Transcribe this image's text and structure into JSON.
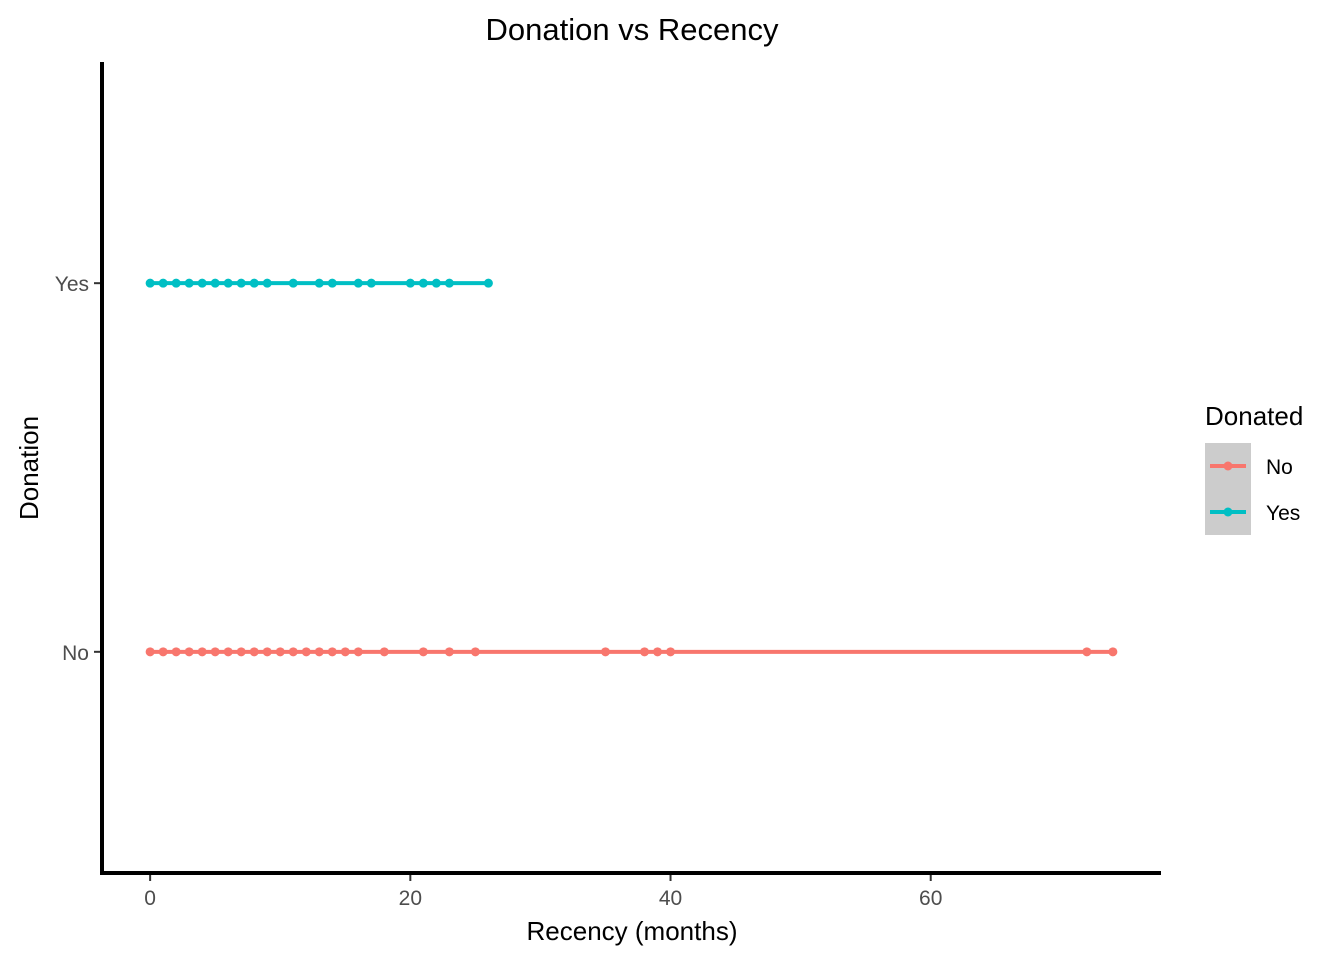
{
  "chart_data": {
    "type": "line",
    "title": "Donation vs Recency",
    "xlabel": "Recency (months)",
    "ylabel": "Donation",
    "xlim": [
      -3.7,
      77.7
    ],
    "x_ticks": [
      0,
      20,
      40,
      60
    ],
    "categories": [
      "No",
      "Yes"
    ],
    "grid": false,
    "legend": {
      "title": "Donated",
      "position": "right"
    },
    "series": [
      {
        "name": "No",
        "color": "#F8766D",
        "category": "No",
        "x": [
          0,
          1,
          2,
          3,
          4,
          5,
          6,
          7,
          8,
          9,
          10,
          11,
          12,
          13,
          14,
          15,
          16,
          18,
          21,
          23,
          25,
          35,
          38,
          39,
          40,
          72,
          74
        ]
      },
      {
        "name": "Yes",
        "color": "#00BFC4",
        "category": "Yes",
        "x": [
          0,
          1,
          2,
          3,
          4,
          5,
          6,
          7,
          8,
          9,
          11,
          13,
          14,
          16,
          17,
          20,
          21,
          22,
          23,
          26
        ]
      }
    ]
  }
}
